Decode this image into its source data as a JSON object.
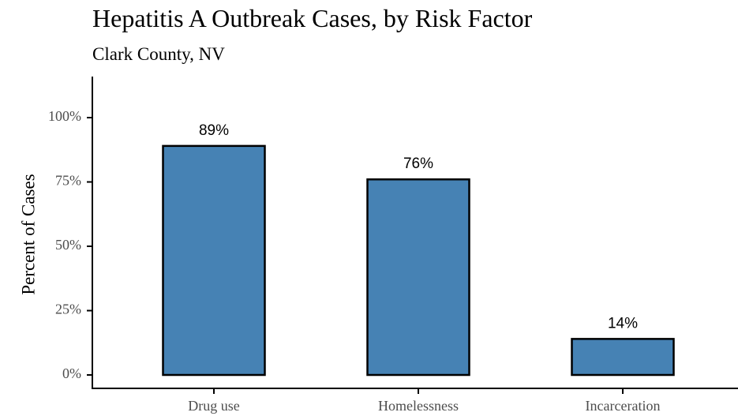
{
  "chart_data": {
    "type": "bar",
    "title": "Hepatitis A Outbreak Cases, by Risk Factor",
    "subtitle": "Clark County, NV",
    "xlabel": "",
    "ylabel": "Percent of Cases",
    "categories": [
      "Drug use",
      "Homelessness",
      "Incarceration"
    ],
    "values": [
      89,
      76,
      14
    ],
    "data_labels": [
      "89%",
      "76%",
      "14%"
    ],
    "ylim": [
      0,
      110
    ],
    "yticks": [
      0,
      25,
      50,
      75,
      100
    ],
    "ytick_labels": [
      "0%",
      "25%",
      "50%",
      "75%",
      "100%"
    ],
    "bar_color": "#4682B4",
    "bar_outline_color": "#000000",
    "grid": false,
    "legend": "none"
  }
}
